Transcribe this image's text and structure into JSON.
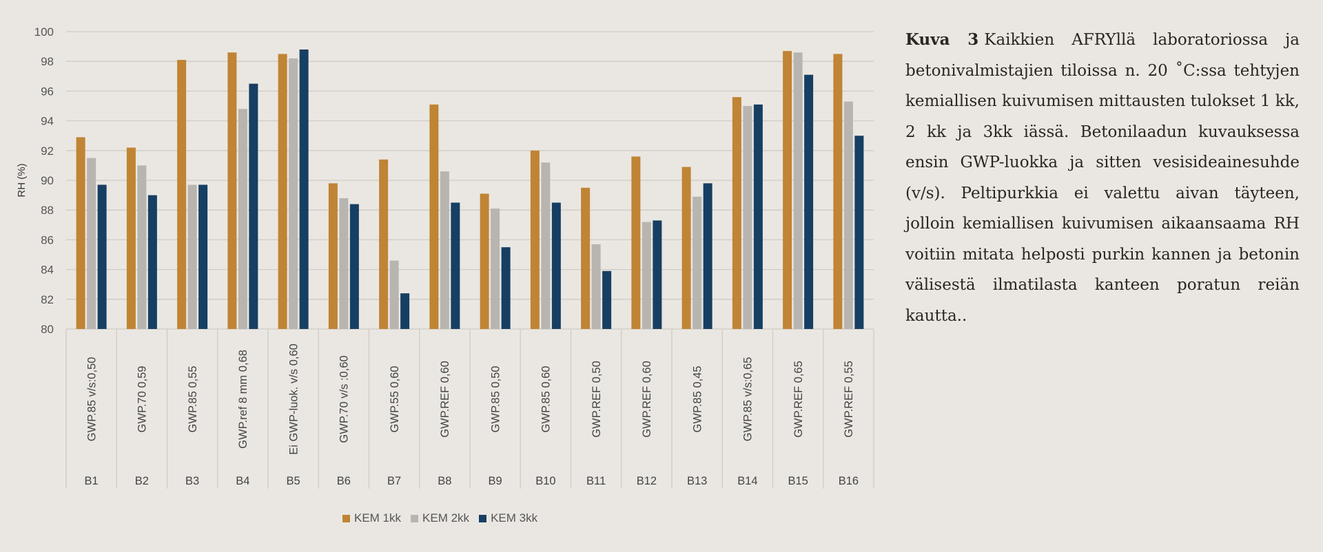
{
  "figure": {
    "caption_label": "Kuva 3",
    "caption_text": "Kaikkien AFRYllä laboratoriossa ja betonivalmistajien tiloissa n. 20 ˚C:ssa tehtyjen kemiallisen kuivumisen mittausten tulokset 1 kk, 2 kk ja 3kk iässä. Betonilaadun kuvauksessa ensin GWP-luokka ja sitten vesisideainesuhde (v/s). Peltipurkkia ei valettu aivan täyteen, jolloin kemiallisen kuivumisen aikaansaama RH voitiin mitata helposti purkin kannen ja betonin välisestä ilmatilasta kanteen poratun reiän kautta.."
  },
  "chart_data": {
    "type": "bar",
    "title": "",
    "xlabel": "",
    "ylabel": "RH (%)",
    "ylim": [
      80,
      100
    ],
    "yticks": [
      80,
      82,
      84,
      86,
      88,
      90,
      92,
      94,
      96,
      98,
      100
    ],
    "grid": true,
    "legend_position": "bottom",
    "categories": [
      "B1",
      "B2",
      "B3",
      "B4",
      "B5",
      "B6",
      "B7",
      "B8",
      "B9",
      "B10",
      "B11",
      "B12",
      "B13",
      "B14",
      "B15",
      "B16"
    ],
    "subcategories": [
      "GWP.85 v/s:0,50",
      "GWP.70 0,59",
      "GWP.85 0,55",
      "GWP.ref 8 mm 0,68",
      "Ei GWP-luok. v/s 0,60",
      "GWP.70 v/s :0,60",
      "GWP.55 0,60",
      "GWP.REF 0,60",
      "GWP.85 0,50",
      "GWP.85 0,60",
      "GWP.REF 0,50",
      "GWP.REF 0,60",
      "GWP.85 0,45",
      "GWP.85 v/s:0,65",
      "GWP.REF 0,65",
      "GWP.REF 0,55"
    ],
    "series": [
      {
        "name": "KEM 1kk",
        "color": "#c08435",
        "values": [
          92.9,
          92.2,
          98.1,
          98.6,
          98.5,
          89.8,
          91.4,
          95.1,
          89.1,
          92.0,
          89.5,
          91.6,
          90.9,
          95.6,
          98.7,
          98.5
        ]
      },
      {
        "name": "KEM 2kk",
        "color": "#b8b5b1",
        "values": [
          91.5,
          91.0,
          89.7,
          94.8,
          98.2,
          88.8,
          84.6,
          90.6,
          88.1,
          91.2,
          85.7,
          87.2,
          88.9,
          95.0,
          98.6,
          95.3
        ]
      },
      {
        "name": "KEM 3kk",
        "color": "#173f63",
        "values": [
          89.7,
          89.0,
          89.7,
          96.5,
          98.8,
          88.4,
          82.4,
          88.5,
          85.5,
          88.5,
          83.9,
          87.3,
          89.8,
          95.1,
          97.1,
          93.0
        ]
      }
    ]
  }
}
